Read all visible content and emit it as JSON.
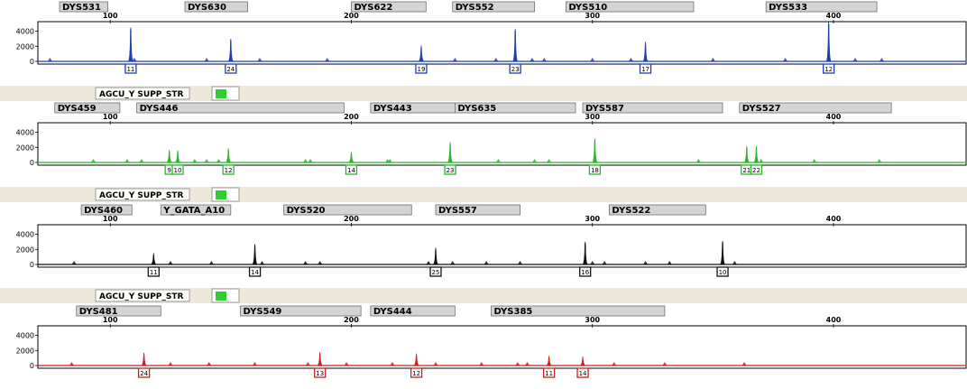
{
  "chart_data": {
    "type": "electropherogram",
    "x_axis": {
      "range": [
        70,
        455
      ],
      "ticks": [
        100,
        200,
        300,
        400
      ]
    },
    "y_axis": {
      "range": [
        0,
        5500
      ],
      "ticks": [
        0,
        2000,
        4000
      ]
    },
    "separator_label": "AGCU_Y SUPP_STR",
    "panels": [
      {
        "name": "blue",
        "color": "#1f3fb0",
        "loci": [
          {
            "name": "DYS531",
            "start": 79,
            "end": 99
          },
          {
            "name": "DYS630",
            "start": 131,
            "end": 157
          },
          {
            "name": "DYS622",
            "start": 200,
            "end": 231
          },
          {
            "name": "DYS552",
            "start": 242,
            "end": 276
          },
          {
            "name": "DYS510",
            "start": 289,
            "end": 342
          },
          {
            "name": "DYS533",
            "start": 372,
            "end": 418
          }
        ],
        "peaks": [
          {
            "x": 108.5,
            "h": 4500,
            "allele": "11"
          },
          {
            "x": 150,
            "h": 3000,
            "allele": "24"
          },
          {
            "x": 229,
            "h": 2100,
            "allele": "19"
          },
          {
            "x": 268,
            "h": 4300,
            "allele": "23"
          },
          {
            "x": 322,
            "h": 2600,
            "allele": "17"
          },
          {
            "x": 398,
            "h": 5200,
            "allele": "12"
          }
        ],
        "markers": [
          75,
          110,
          140,
          162,
          190,
          243,
          260,
          275,
          280,
          300,
          316,
          350,
          380,
          409,
          420
        ]
      },
      {
        "name": "green",
        "color": "#2bb52b",
        "loci": [
          {
            "name": "DYS459",
            "start": 77,
            "end": 104
          },
          {
            "name": "DYS446",
            "start": 111,
            "end": 197
          },
          {
            "name": "DYS443",
            "start": 208,
            "end": 243
          },
          {
            "name": "DYS635",
            "start": 243,
            "end": 293
          },
          {
            "name": "DYS587",
            "start": 296,
            "end": 354
          },
          {
            "name": "DYS527",
            "start": 361,
            "end": 424
          }
        ],
        "peaks": [
          {
            "x": 124.5,
            "h": 1700,
            "allele": "9"
          },
          {
            "x": 128,
            "h": 1600,
            "allele": "10"
          },
          {
            "x": 149,
            "h": 1900,
            "allele": "12"
          },
          {
            "x": 200,
            "h": 1400,
            "allele": "14"
          },
          {
            "x": 241,
            "h": 2700,
            "allele": "23"
          },
          {
            "x": 301,
            "h": 3200,
            "allele": "18"
          },
          {
            "x": 364,
            "h": 2200,
            "allele": "21"
          },
          {
            "x": 368,
            "h": 2200,
            "allele": "22"
          }
        ],
        "markers": [
          93,
          107,
          113,
          135,
          140,
          145,
          181,
          183,
          215,
          216,
          261,
          276,
          282,
          344,
          370,
          392,
          419
        ]
      },
      {
        "name": "black",
        "color": "#111111",
        "loci": [
          {
            "name": "DYS460",
            "start": 88,
            "end": 109
          },
          {
            "name": "Y_GATA_A10",
            "start": 121,
            "end": 150
          },
          {
            "name": "DYS520",
            "start": 172,
            "end": 225
          },
          {
            "name": "DYS557",
            "start": 235,
            "end": 270
          },
          {
            "name": "DYS522",
            "start": 307,
            "end": 347
          }
        ],
        "peaks": [
          {
            "x": 118,
            "h": 1500,
            "allele": "11"
          },
          {
            "x": 160,
            "h": 2700,
            "allele": "14"
          },
          {
            "x": 235,
            "h": 2200,
            "allele": "25"
          },
          {
            "x": 297,
            "h": 3000,
            "allele": "16"
          },
          {
            "x": 354,
            "h": 3100,
            "allele": "10"
          }
        ],
        "markers": [
          85,
          125,
          142,
          163,
          181,
          187,
          232,
          242,
          256,
          270,
          300,
          305,
          322,
          332,
          359
        ]
      },
      {
        "name": "red",
        "color": "#c8201e",
        "loci": [
          {
            "name": "DYS481",
            "start": 86,
            "end": 121
          },
          {
            "name": "DYS549",
            "start": 154,
            "end": 204
          },
          {
            "name": "DYS444",
            "start": 208,
            "end": 243
          },
          {
            "name": "DYS385",
            "start": 258,
            "end": 330
          }
        ],
        "peaks": [
          {
            "x": 114,
            "h": 1700,
            "allele": "24"
          },
          {
            "x": 187,
            "h": 1800,
            "allele": "13"
          },
          {
            "x": 227,
            "h": 1600,
            "allele": "12"
          },
          {
            "x": 282,
            "h": 1300,
            "allele": "11"
          },
          {
            "x": 296,
            "h": 1200,
            "allele": "14"
          }
        ],
        "markers": [
          84,
          125,
          141,
          160,
          182,
          198,
          217,
          235,
          254,
          269,
          273,
          309,
          330,
          363
        ]
      }
    ]
  }
}
